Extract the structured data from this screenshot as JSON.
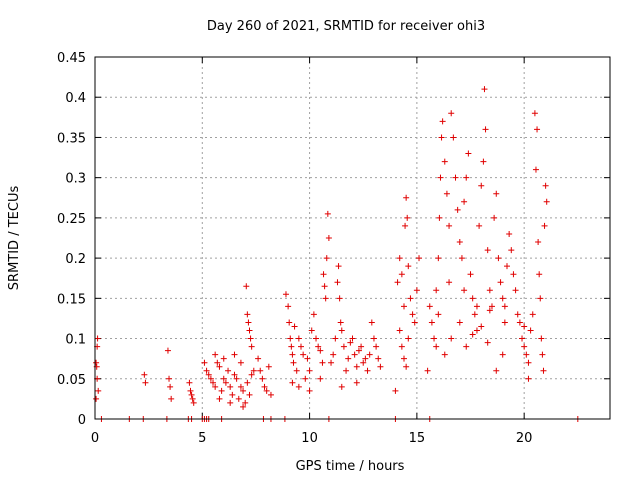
{
  "chart_data": {
    "type": "scatter",
    "title": "Day 260 of 2021, SRMTID for receiver ohi3",
    "xlabel": "GPS time / hours",
    "ylabel": "SRMTID / TECUs",
    "xlim": [
      0,
      24
    ],
    "ylim": [
      0,
      0.45
    ],
    "x_ticks": [
      0,
      5,
      10,
      15,
      20
    ],
    "x_tick_labels": [
      "0",
      "5",
      "10",
      "15",
      "20"
    ],
    "y_ticks": [
      0,
      0.05,
      0.1,
      0.15,
      0.2,
      0.25,
      0.3,
      0.35,
      0.4,
      0.45
    ],
    "y_tick_labels": [
      "0",
      "0.05",
      "0.1",
      "0.15",
      "0.2",
      "0.25",
      "0.3",
      "0.35",
      "0.4",
      "0.45"
    ],
    "grid": true,
    "marker": "+",
    "color": "#e00000",
    "series": [
      {
        "name": "ohi3",
        "points": [
          [
            0.05,
            0.07
          ],
          [
            0.08,
            0.065
          ],
          [
            0.1,
            0.09
          ],
          [
            0.12,
            0.1
          ],
          [
            0.15,
            0.035
          ],
          [
            0.1,
            0.05
          ],
          [
            0.05,
            0.025
          ],
          [
            2.3,
            0.055
          ],
          [
            2.35,
            0.045
          ],
          [
            3.4,
            0.085
          ],
          [
            3.45,
            0.05
          ],
          [
            3.5,
            0.04
          ],
          [
            3.55,
            0.025
          ],
          [
            4.4,
            0.045
          ],
          [
            4.45,
            0.035
          ],
          [
            4.5,
            0.03
          ],
          [
            4.55,
            0.025
          ],
          [
            4.6,
            0.02
          ],
          [
            5.1,
            0.07
          ],
          [
            5.2,
            0.06
          ],
          [
            5.3,
            0.055
          ],
          [
            5.4,
            0.05
          ],
          [
            5.5,
            0.045
          ],
          [
            5.6,
            0.04
          ],
          [
            5.7,
            0.07
          ],
          [
            5.8,
            0.065
          ],
          [
            5.9,
            0.035
          ],
          [
            6.0,
            0.05
          ],
          [
            6.1,
            0.045
          ],
          [
            6.2,
            0.06
          ],
          [
            6.3,
            0.04
          ],
          [
            6.4,
            0.03
          ],
          [
            6.5,
            0.055
          ],
          [
            6.6,
            0.05
          ],
          [
            6.7,
            0.025
          ],
          [
            6.8,
            0.04
          ],
          [
            6.9,
            0.035
          ],
          [
            7.0,
            0.02
          ],
          [
            7.1,
            0.045
          ],
          [
            7.2,
            0.03
          ],
          [
            7.3,
            0.055
          ],
          [
            7.4,
            0.06
          ],
          [
            5.6,
            0.08
          ],
          [
            6.0,
            0.075
          ],
          [
            6.5,
            0.08
          ],
          [
            6.8,
            0.07
          ],
          [
            5.8,
            0.025
          ],
          [
            6.3,
            0.02
          ],
          [
            6.9,
            0.015
          ],
          [
            7.05,
            0.165
          ],
          [
            7.1,
            0.13
          ],
          [
            7.15,
            0.12
          ],
          [
            7.2,
            0.11
          ],
          [
            7.25,
            0.1
          ],
          [
            7.3,
            0.09
          ],
          [
            7.6,
            0.075
          ],
          [
            7.7,
            0.06
          ],
          [
            7.8,
            0.05
          ],
          [
            7.9,
            0.04
          ],
          [
            8.0,
            0.035
          ],
          [
            8.1,
            0.065
          ],
          [
            8.2,
            0.03
          ],
          [
            8.9,
            0.155
          ],
          [
            9.0,
            0.14
          ],
          [
            9.05,
            0.12
          ],
          [
            9.1,
            0.1
          ],
          [
            9.15,
            0.09
          ],
          [
            9.2,
            0.08
          ],
          [
            9.25,
            0.07
          ],
          [
            9.3,
            0.115
          ],
          [
            9.4,
            0.06
          ],
          [
            9.5,
            0.1
          ],
          [
            9.6,
            0.09
          ],
          [
            9.7,
            0.08
          ],
          [
            9.8,
            0.05
          ],
          [
            9.9,
            0.075
          ],
          [
            10.0,
            0.06
          ],
          [
            10.1,
            0.11
          ],
          [
            10.2,
            0.13
          ],
          [
            10.3,
            0.1
          ],
          [
            10.4,
            0.09
          ],
          [
            10.5,
            0.085
          ],
          [
            10.6,
            0.07
          ],
          [
            10.65,
            0.18
          ],
          [
            10.7,
            0.165
          ],
          [
            10.75,
            0.15
          ],
          [
            10.8,
            0.2
          ],
          [
            10.85,
            0.255
          ],
          [
            10.9,
            0.225
          ],
          [
            9.5,
            0.04
          ],
          [
            10.0,
            0.035
          ],
          [
            10.5,
            0.05
          ],
          [
            9.2,
            0.045
          ],
          [
            11.0,
            0.07
          ],
          [
            11.1,
            0.08
          ],
          [
            11.2,
            0.1
          ],
          [
            11.3,
            0.17
          ],
          [
            11.35,
            0.19
          ],
          [
            11.4,
            0.15
          ],
          [
            11.45,
            0.12
          ],
          [
            11.5,
            0.11
          ],
          [
            11.6,
            0.09
          ],
          [
            11.7,
            0.06
          ],
          [
            11.8,
            0.075
          ],
          [
            11.9,
            0.095
          ],
          [
            12.0,
            0.1
          ],
          [
            12.1,
            0.08
          ],
          [
            12.2,
            0.065
          ],
          [
            12.3,
            0.085
          ],
          [
            12.4,
            0.09
          ],
          [
            12.5,
            0.07
          ],
          [
            12.6,
            0.075
          ],
          [
            12.7,
            0.06
          ],
          [
            12.8,
            0.08
          ],
          [
            12.9,
            0.12
          ],
          [
            13.0,
            0.1
          ],
          [
            13.1,
            0.09
          ],
          [
            13.2,
            0.075
          ],
          [
            13.3,
            0.065
          ],
          [
            11.5,
            0.04
          ],
          [
            12.2,
            0.045
          ],
          [
            14.0,
            0.035
          ],
          [
            14.1,
            0.17
          ],
          [
            14.2,
            0.2
          ],
          [
            14.3,
            0.18
          ],
          [
            14.4,
            0.14
          ],
          [
            14.45,
            0.24
          ],
          [
            14.5,
            0.275
          ],
          [
            14.55,
            0.25
          ],
          [
            14.6,
            0.19
          ],
          [
            14.7,
            0.15
          ],
          [
            14.8,
            0.13
          ],
          [
            14.9,
            0.12
          ],
          [
            15.0,
            0.16
          ],
          [
            15.1,
            0.2
          ],
          [
            14.2,
            0.11
          ],
          [
            14.3,
            0.09
          ],
          [
            14.4,
            0.075
          ],
          [
            14.5,
            0.065
          ],
          [
            14.6,
            0.1
          ],
          [
            15.5,
            0.06
          ],
          [
            15.6,
            0.14
          ],
          [
            15.7,
            0.12
          ],
          [
            15.8,
            0.1
          ],
          [
            15.9,
            0.09
          ],
          [
            16.0,
            0.2
          ],
          [
            16.05,
            0.25
          ],
          [
            16.1,
            0.3
          ],
          [
            16.15,
            0.35
          ],
          [
            16.2,
            0.37
          ],
          [
            16.3,
            0.32
          ],
          [
            16.4,
            0.28
          ],
          [
            16.5,
            0.24
          ],
          [
            16.6,
            0.38
          ],
          [
            16.7,
            0.35
          ],
          [
            16.8,
            0.3
          ],
          [
            16.9,
            0.26
          ],
          [
            17.0,
            0.22
          ],
          [
            17.1,
            0.2
          ],
          [
            17.2,
            0.27
          ],
          [
            17.3,
            0.3
          ],
          [
            17.4,
            0.33
          ],
          [
            17.5,
            0.18
          ],
          [
            17.6,
            0.15
          ],
          [
            17.7,
            0.13
          ],
          [
            17.8,
            0.11
          ],
          [
            17.9,
            0.24
          ],
          [
            18.0,
            0.29
          ],
          [
            18.1,
            0.32
          ],
          [
            18.15,
            0.41
          ],
          [
            18.2,
            0.36
          ],
          [
            18.3,
            0.21
          ],
          [
            18.4,
            0.16
          ],
          [
            18.5,
            0.14
          ],
          [
            18.6,
            0.25
          ],
          [
            18.7,
            0.28
          ],
          [
            18.8,
            0.2
          ],
          [
            18.9,
            0.17
          ],
          [
            19.0,
            0.15
          ],
          [
            19.1,
            0.12
          ],
          [
            19.2,
            0.19
          ],
          [
            19.3,
            0.23
          ],
          [
            19.4,
            0.21
          ],
          [
            19.5,
            0.18
          ],
          [
            19.6,
            0.16
          ],
          [
            19.7,
            0.13
          ],
          [
            16.0,
            0.13
          ],
          [
            16.3,
            0.08
          ],
          [
            16.6,
            0.1
          ],
          [
            17.0,
            0.12
          ],
          [
            17.3,
            0.09
          ],
          [
            17.6,
            0.105
          ],
          [
            18.0,
            0.115
          ],
          [
            18.3,
            0.095
          ],
          [
            18.7,
            0.06
          ],
          [
            19.0,
            0.08
          ],
          [
            15.9,
            0.16
          ],
          [
            16.5,
            0.17
          ],
          [
            17.2,
            0.16
          ],
          [
            17.8,
            0.14
          ],
          [
            18.4,
            0.135
          ],
          [
            19.1,
            0.14
          ],
          [
            19.8,
            0.12
          ],
          [
            19.9,
            0.1
          ],
          [
            20.0,
            0.09
          ],
          [
            20.1,
            0.08
          ],
          [
            20.2,
            0.07
          ],
          [
            20.3,
            0.11
          ],
          [
            20.4,
            0.13
          ],
          [
            20.5,
            0.38
          ],
          [
            20.55,
            0.31
          ],
          [
            20.6,
            0.36
          ],
          [
            20.65,
            0.22
          ],
          [
            20.7,
            0.18
          ],
          [
            20.75,
            0.15
          ],
          [
            20.8,
            0.1
          ],
          [
            20.85,
            0.08
          ],
          [
            20.9,
            0.06
          ],
          [
            20.95,
            0.24
          ],
          [
            21.0,
            0.29
          ],
          [
            21.05,
            0.27
          ],
          [
            20.2,
            0.05
          ],
          [
            20.0,
            0.115
          ],
          [
            0.3,
            0
          ],
          [
            1.6,
            0
          ],
          [
            2.25,
            0
          ],
          [
            3.35,
            0
          ],
          [
            4.35,
            0
          ],
          [
            4.5,
            0
          ],
          [
            5.0,
            0
          ],
          [
            5.1,
            0
          ],
          [
            5.2,
            0
          ],
          [
            5.3,
            0
          ],
          [
            5.9,
            0
          ],
          [
            7.85,
            0
          ],
          [
            8.2,
            0
          ],
          [
            8.85,
            0
          ],
          [
            10.9,
            0
          ],
          [
            14.0,
            0
          ],
          [
            15.6,
            0
          ],
          [
            22.5,
            0
          ]
        ]
      }
    ]
  }
}
